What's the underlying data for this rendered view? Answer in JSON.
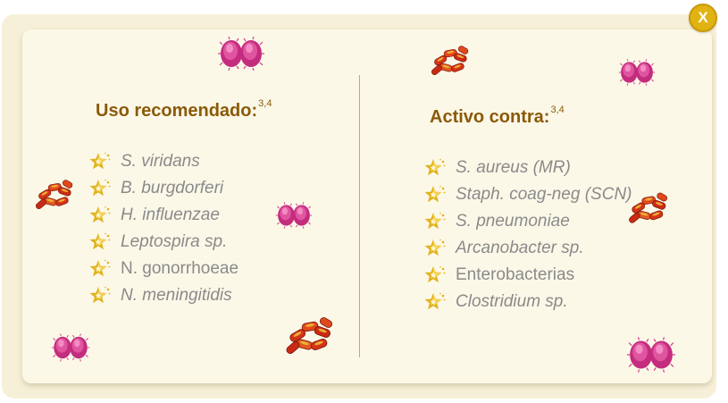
{
  "dialog": {
    "close_label": "X",
    "left_column": {
      "title": "Uso recomendado:",
      "title_refs": "3,4",
      "items": [
        {
          "text": "S. viridans",
          "italic": true
        },
        {
          "text": "B. burgdorferi",
          "italic": true
        },
        {
          "text": "H. influenzae",
          "italic": true
        },
        {
          "text": "Leptospira sp.",
          "italic": true
        },
        {
          "text": "N. gonorrhoeae",
          "italic": false
        },
        {
          "text": "N. meningitidis",
          "italic": true
        }
      ]
    },
    "right_column": {
      "title": "Activo contra:",
      "title_refs": "3,4",
      "items": [
        {
          "text": "S. aureus (MR)",
          "italic": true
        },
        {
          "text": "Staph. coag-neg (SCN)",
          "italic": true
        },
        {
          "text": "S. pneumoniae",
          "italic": true
        },
        {
          "text": "Arcanobacter sp.",
          "italic": true
        },
        {
          "text": "Enterobacterias",
          "italic": false
        },
        {
          "text": "Clostridium sp.",
          "italic": true
        }
      ]
    },
    "decorations": {
      "coccus_icon": "diplococcus-icon",
      "bacillus_icon": "bacillus-cluster-icon",
      "bullet_icon": "star-icon"
    },
    "colors": {
      "title": "#8a5a08",
      "item_text": "#8a8a8a",
      "star": "#e0b31c",
      "close_button": "#e1b312",
      "coccus": "#d63c8e",
      "bacillus": "#cc2a18",
      "background": "#fcf8e8",
      "divider": "#d9a06a"
    }
  }
}
